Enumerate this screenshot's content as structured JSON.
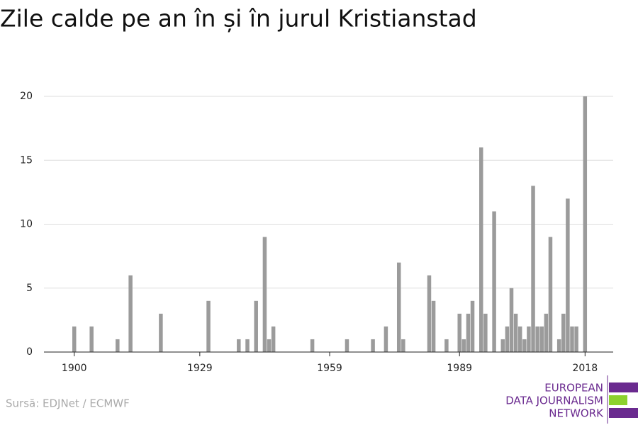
{
  "chart_data": {
    "type": "bar",
    "title": "Zile calde pe an în și în jurul Kristianstad",
    "source": "Sursă: EDJNet / ECMWF",
    "logo": [
      "EUROPEAN",
      "DATA JOURNALISM",
      "NETWORK"
    ],
    "color": "#9b9b9b",
    "x": [
      1900,
      1904,
      1910,
      1913,
      1920,
      1931,
      1938,
      1940,
      1942,
      1944,
      1945,
      1946,
      1955,
      1963,
      1969,
      1972,
      1975,
      1976,
      1982,
      1983,
      1986,
      1989,
      1990,
      1991,
      1992,
      1994,
      1995,
      1997,
      1999,
      2000,
      2001,
      2002,
      2003,
      2004,
      2005,
      2006,
      2007,
      2008,
      2009,
      2010,
      2012,
      2013,
      2014,
      2015,
      2016,
      2018
    ],
    "values": [
      2,
      2,
      1,
      6,
      3,
      4,
      1,
      1,
      4,
      9,
      1,
      2,
      1,
      1,
      1,
      2,
      7,
      1,
      6,
      4,
      1,
      3,
      1,
      3,
      4,
      16,
      3,
      11,
      1,
      2,
      5,
      3,
      2,
      1,
      2,
      13,
      2,
      2,
      3,
      9,
      1,
      3,
      12,
      2,
      2,
      20
    ],
    "xlim": [
      1893,
      2024.5
    ],
    "xticks": [
      1900,
      1929,
      1959,
      1989,
      2018
    ],
    "ylim": [
      0,
      20
    ],
    "yticks": [
      0,
      5,
      10,
      15,
      20
    ],
    "grid": true
  }
}
